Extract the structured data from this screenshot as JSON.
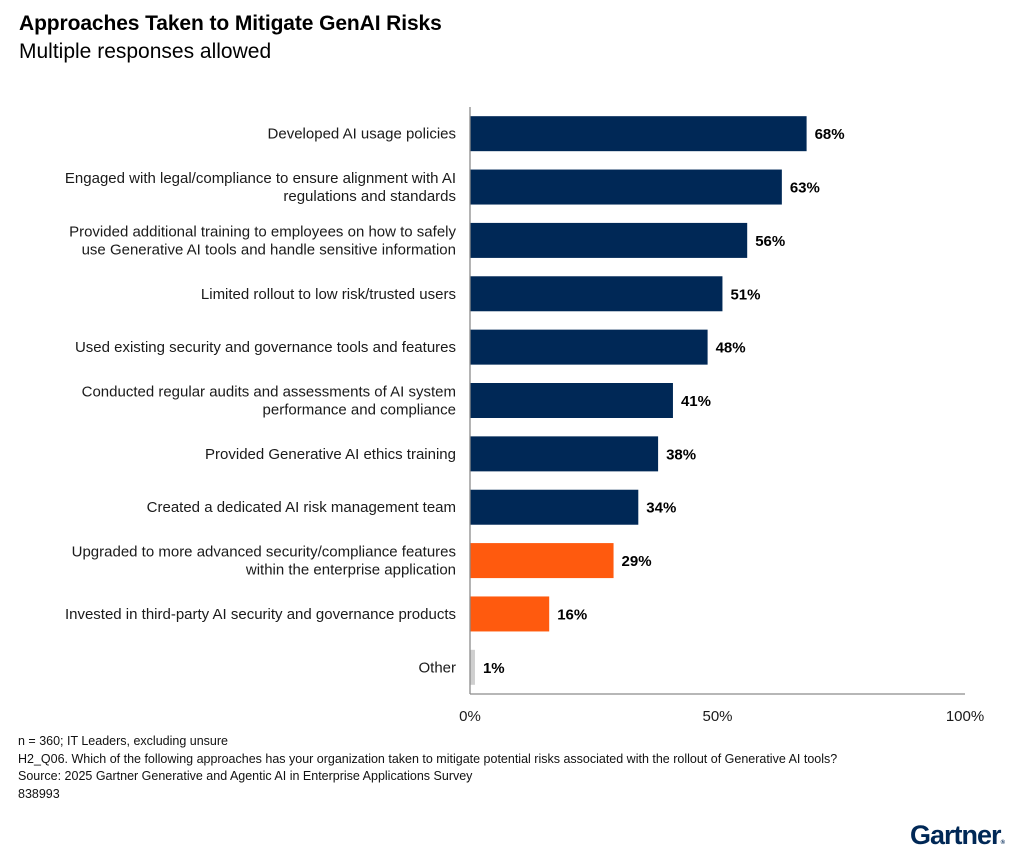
{
  "header": {
    "title": "Approaches Taken to Mitigate GenAI Risks",
    "subtitle": "Multiple responses allowed"
  },
  "colors": {
    "primary": "#002856",
    "highlight": "#FF5A0E",
    "other": "#CFCFCF",
    "axis": "#8C8C8C"
  },
  "chart_data": {
    "type": "bar",
    "orientation": "horizontal",
    "title": "Approaches Taken to Mitigate GenAI Risks",
    "subtitle": "Multiple responses allowed",
    "xlabel": "",
    "ylabel": "",
    "xlim": [
      0,
      100
    ],
    "x_ticks": [
      0,
      50,
      100
    ],
    "x_tick_labels": [
      "0%",
      "50%",
      "100%"
    ],
    "grid": false,
    "legend": "none",
    "categories": [
      [
        "Developed AI usage policies"
      ],
      [
        "Engaged with legal/compliance to ensure alignment with AI",
        "regulations and standards"
      ],
      [
        "Provided additional training to employees on how to safely",
        "use Generative AI tools and handle sensitive information"
      ],
      [
        "Limited rollout to low risk/trusted users"
      ],
      [
        "Used existing security and governance tools and features"
      ],
      [
        "Conducted regular audits and assessments of AI system",
        "performance and compliance"
      ],
      [
        "Provided Generative AI ethics training"
      ],
      [
        "Created a dedicated AI risk management team"
      ],
      [
        "Upgraded to more advanced security/compliance features",
        "within the enterprise application"
      ],
      [
        "Invested in third-party AI security and governance products"
      ],
      [
        "Other"
      ]
    ],
    "values": [
      68,
      63,
      56,
      51,
      48,
      41,
      38,
      34,
      29,
      16,
      1
    ],
    "value_labels": [
      "68%",
      "63%",
      "56%",
      "51%",
      "48%",
      "41%",
      "38%",
      "34%",
      "29%",
      "16%",
      "1%"
    ],
    "bar_color_groups": [
      "primary",
      "primary",
      "primary",
      "primary",
      "primary",
      "primary",
      "primary",
      "primary",
      "highlight",
      "highlight",
      "other"
    ],
    "unit": "%"
  },
  "footer": {
    "notes": [
      "n = 360; IT Leaders, excluding unsure",
      "H2_Q06. Which of the following approaches has your organization taken to mitigate potential risks associated with the rollout of Generative AI tools?",
      "Source: 2025 Gartner Generative and Agentic AI in Enterprise Applications Survey",
      "838993"
    ],
    "logo_text": "Gartner",
    "logo_mark": "®"
  }
}
